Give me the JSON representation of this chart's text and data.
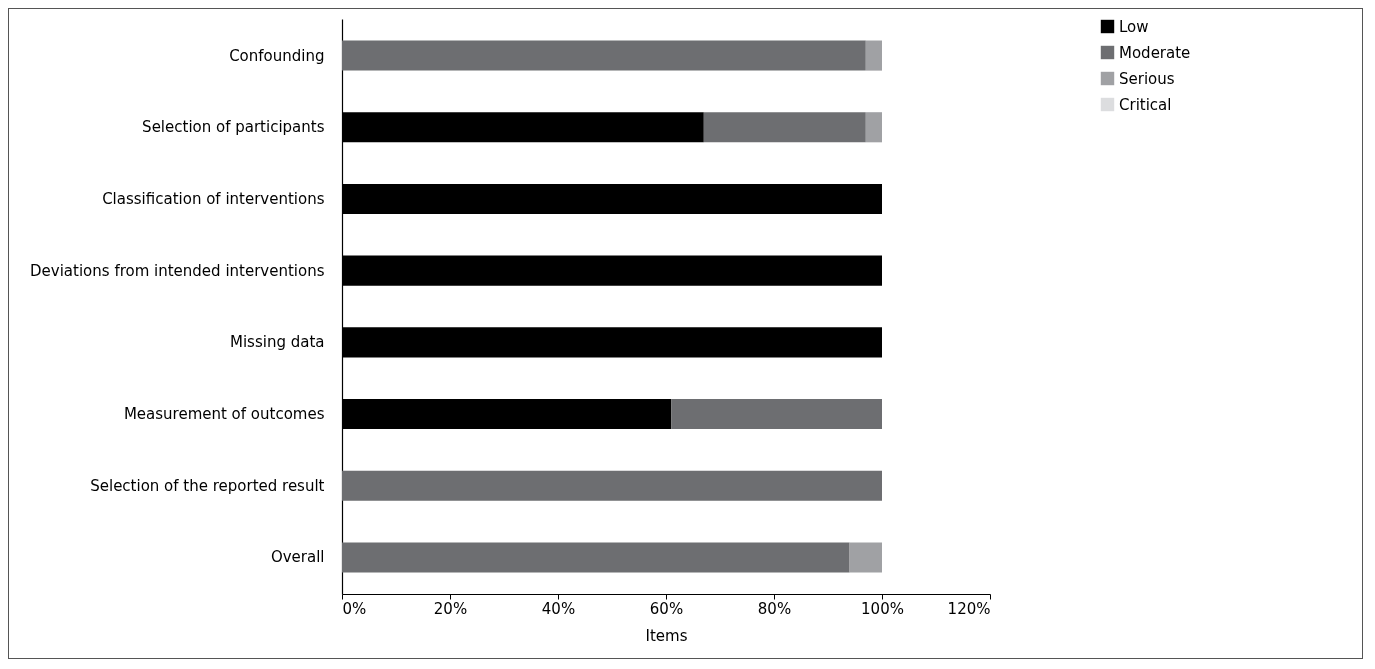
{
  "chart_data": {
    "type": "bar",
    "orientation": "horizontal",
    "stacked": true,
    "categories": [
      "Confounding",
      "Selection of participants",
      "Classification of interventions",
      "Deviations from intended interventions",
      "Missing data",
      "Measurement of outcomes",
      "Selection of the reported result",
      "Overall"
    ],
    "series": [
      {
        "name": "Low",
        "color": "#000000",
        "values": [
          0,
          67,
          100,
          100,
          100,
          61,
          0,
          0
        ]
      },
      {
        "name": "Moderate",
        "color": "#6d6e71",
        "values": [
          97,
          30,
          0,
          0,
          0,
          39,
          100,
          94
        ]
      },
      {
        "name": "Serious",
        "color": "#a0a1a4",
        "values": [
          3,
          3,
          0,
          0,
          0,
          0,
          0,
          6
        ]
      },
      {
        "name": "Critical",
        "color": "#dcdddf",
        "values": [
          0,
          0,
          0,
          0,
          0,
          0,
          0,
          0
        ]
      }
    ],
    "xlabel": "Items",
    "xlim": [
      0,
      120
    ],
    "xticks": [
      {
        "value": 0,
        "label": "0%"
      },
      {
        "value": 20,
        "label": "20%"
      },
      {
        "value": 40,
        "label": "40%"
      },
      {
        "value": 60,
        "label": "60%"
      },
      {
        "value": 80,
        "label": "80%"
      },
      {
        "value": 100,
        "label": "100%"
      },
      {
        "value": 120,
        "label": "120%"
      }
    ],
    "grid": false,
    "legend": "right"
  }
}
